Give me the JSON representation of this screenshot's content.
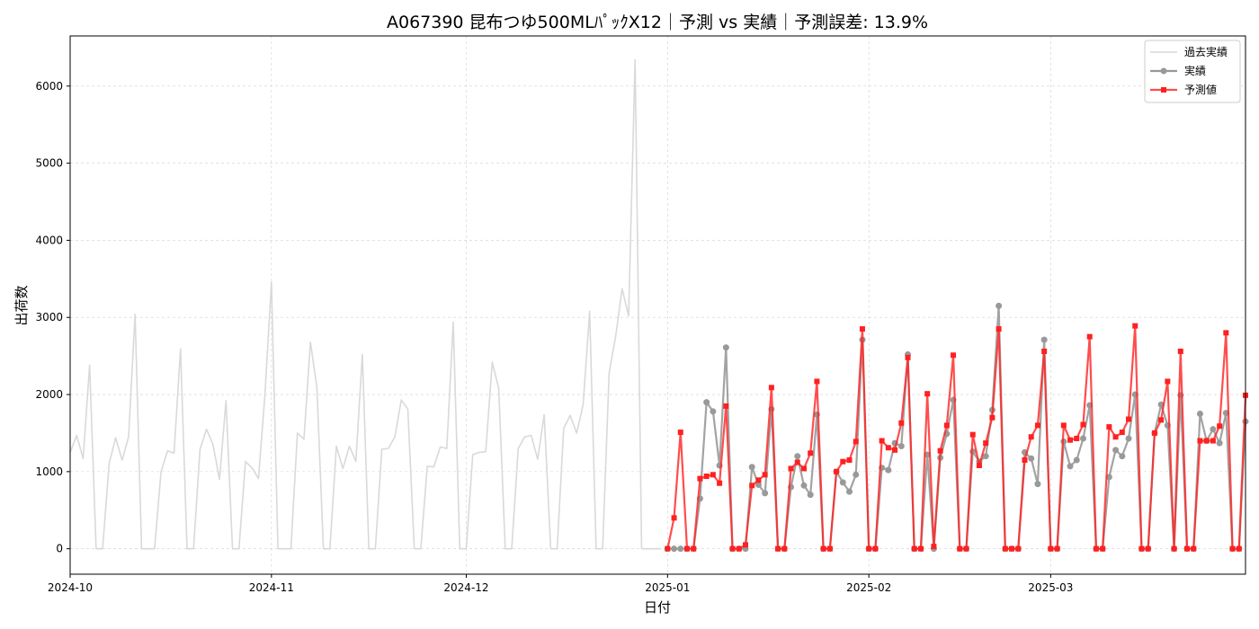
{
  "chart_data": {
    "type": "line",
    "title": "A067390 昆布つゆ500MLﾊﾟｯｸX12｜予測 vs 実績｜予測誤差: 13.9%",
    "xlabel": "日付",
    "ylabel": "出荷数",
    "xlim": [
      "2024-10-01",
      "2025-03-31"
    ],
    "ylim": [
      -330,
      6650
    ],
    "grid": true,
    "legend_position": "top-right",
    "x_ticks": [
      "2024-10",
      "2024-11",
      "2024-12",
      "2025-01",
      "2025-02",
      "2025-03"
    ],
    "y_ticks": [
      0,
      1000,
      2000,
      3000,
      4000,
      5000,
      6000
    ],
    "series": [
      {
        "name": "過去実績",
        "color": "#d9d9d9",
        "marker": "none",
        "points": [
          [
            "2024-10-01",
            1250
          ],
          [
            "2024-10-02",
            1470
          ],
          [
            "2024-10-03",
            1170
          ],
          [
            "2024-10-04",
            2380
          ],
          [
            "2024-10-05",
            0
          ],
          [
            "2024-10-06",
            0
          ],
          [
            "2024-10-07",
            1100
          ],
          [
            "2024-10-08",
            1440
          ],
          [
            "2024-10-09",
            1150
          ],
          [
            "2024-10-10",
            1450
          ],
          [
            "2024-10-11",
            3040
          ],
          [
            "2024-10-12",
            0
          ],
          [
            "2024-10-13",
            0
          ],
          [
            "2024-10-14",
            0
          ],
          [
            "2024-10-15",
            1000
          ],
          [
            "2024-10-16",
            1270
          ],
          [
            "2024-10-17",
            1240
          ],
          [
            "2024-10-18",
            2590
          ],
          [
            "2024-10-19",
            0
          ],
          [
            "2024-10-20",
            0
          ],
          [
            "2024-10-21",
            1290
          ],
          [
            "2024-10-22",
            1550
          ],
          [
            "2024-10-23",
            1350
          ],
          [
            "2024-10-24",
            900
          ],
          [
            "2024-10-25",
            1920
          ],
          [
            "2024-10-26",
            0
          ],
          [
            "2024-10-27",
            0
          ],
          [
            "2024-10-28",
            1130
          ],
          [
            "2024-10-29",
            1050
          ],
          [
            "2024-10-30",
            910
          ],
          [
            "2024-10-31",
            2000
          ],
          [
            "2024-11-01",
            3460
          ],
          [
            "2024-11-02",
            0
          ],
          [
            "2024-11-03",
            0
          ],
          [
            "2024-11-04",
            0
          ],
          [
            "2024-11-05",
            1500
          ],
          [
            "2024-11-06",
            1420
          ],
          [
            "2024-11-07",
            2680
          ],
          [
            "2024-11-08",
            2090
          ],
          [
            "2024-11-09",
            0
          ],
          [
            "2024-11-10",
            0
          ],
          [
            "2024-11-11",
            1330
          ],
          [
            "2024-11-12",
            1040
          ],
          [
            "2024-11-13",
            1330
          ],
          [
            "2024-11-14",
            1130
          ],
          [
            "2024-11-15",
            2520
          ],
          [
            "2024-11-16",
            0
          ],
          [
            "2024-11-17",
            0
          ],
          [
            "2024-11-18",
            1290
          ],
          [
            "2024-11-19",
            1300
          ],
          [
            "2024-11-20",
            1450
          ],
          [
            "2024-11-21",
            1930
          ],
          [
            "2024-11-22",
            1810
          ],
          [
            "2024-11-23",
            0
          ],
          [
            "2024-11-24",
            0
          ],
          [
            "2024-11-25",
            1070
          ],
          [
            "2024-11-26",
            1060
          ],
          [
            "2024-11-27",
            1320
          ],
          [
            "2024-11-28",
            1300
          ],
          [
            "2024-11-29",
            2940
          ],
          [
            "2024-11-30",
            0
          ],
          [
            "2024-12-01",
            0
          ],
          [
            "2024-12-02",
            1220
          ],
          [
            "2024-12-03",
            1250
          ],
          [
            "2024-12-04",
            1260
          ],
          [
            "2024-12-05",
            2420
          ],
          [
            "2024-12-06",
            2080
          ],
          [
            "2024-12-07",
            0
          ],
          [
            "2024-12-08",
            0
          ],
          [
            "2024-12-09",
            1300
          ],
          [
            "2024-12-10",
            1450
          ],
          [
            "2024-12-11",
            1470
          ],
          [
            "2024-12-12",
            1160
          ],
          [
            "2024-12-13",
            1740
          ],
          [
            "2024-12-14",
            0
          ],
          [
            "2024-12-15",
            0
          ],
          [
            "2024-12-16",
            1560
          ],
          [
            "2024-12-17",
            1730
          ],
          [
            "2024-12-18",
            1500
          ],
          [
            "2024-12-19",
            1870
          ],
          [
            "2024-12-20",
            3080
          ],
          [
            "2024-12-21",
            0
          ],
          [
            "2024-12-22",
            0
          ],
          [
            "2024-12-23",
            2280
          ],
          [
            "2024-12-24",
            2750
          ],
          [
            "2024-12-25",
            3370
          ],
          [
            "2024-12-26",
            3020
          ],
          [
            "2024-12-27",
            6340
          ],
          [
            "2024-12-28",
            0
          ],
          [
            "2024-12-29",
            0
          ],
          [
            "2024-12-30",
            0
          ],
          [
            "2024-12-31",
            0
          ]
        ]
      },
      {
        "name": "実績",
        "color": "#999999",
        "marker": "circle",
        "points": [
          [
            "2025-01-01",
            0
          ],
          [
            "2025-01-02",
            0
          ],
          [
            "2025-01-03",
            0
          ],
          [
            "2025-01-04",
            0
          ],
          [
            "2025-01-05",
            0
          ],
          [
            "2025-01-06",
            650
          ],
          [
            "2025-01-07",
            1900
          ],
          [
            "2025-01-08",
            1780
          ],
          [
            "2025-01-09",
            1080
          ],
          [
            "2025-01-10",
            2610
          ],
          [
            "2025-01-11",
            0
          ],
          [
            "2025-01-12",
            0
          ],
          [
            "2025-01-13",
            0
          ],
          [
            "2025-01-14",
            1060
          ],
          [
            "2025-01-15",
            830
          ],
          [
            "2025-01-16",
            720
          ],
          [
            "2025-01-17",
            1810
          ],
          [
            "2025-01-18",
            0
          ],
          [
            "2025-01-19",
            0
          ],
          [
            "2025-01-20",
            800
          ],
          [
            "2025-01-21",
            1200
          ],
          [
            "2025-01-22",
            820
          ],
          [
            "2025-01-23",
            700
          ],
          [
            "2025-01-24",
            1740
          ],
          [
            "2025-01-25",
            0
          ],
          [
            "2025-01-26",
            0
          ],
          [
            "2025-01-27",
            1000
          ],
          [
            "2025-01-28",
            860
          ],
          [
            "2025-01-29",
            740
          ],
          [
            "2025-01-30",
            960
          ],
          [
            "2025-01-31",
            2710
          ],
          [
            "2025-02-01",
            0
          ],
          [
            "2025-02-02",
            0
          ],
          [
            "2025-02-03",
            1050
          ],
          [
            "2025-02-04",
            1020
          ],
          [
            "2025-02-05",
            1370
          ],
          [
            "2025-02-06",
            1330
          ],
          [
            "2025-02-07",
            2520
          ],
          [
            "2025-02-08",
            0
          ],
          [
            "2025-02-09",
            0
          ],
          [
            "2025-02-10",
            1220
          ],
          [
            "2025-02-11",
            0
          ],
          [
            "2025-02-12",
            1180
          ],
          [
            "2025-02-13",
            1490
          ],
          [
            "2025-02-14",
            1930
          ],
          [
            "2025-02-15",
            0
          ],
          [
            "2025-02-16",
            0
          ],
          [
            "2025-02-17",
            1260
          ],
          [
            "2025-02-18",
            1130
          ],
          [
            "2025-02-19",
            1200
          ],
          [
            "2025-02-20",
            1800
          ],
          [
            "2025-02-21",
            3150
          ],
          [
            "2025-02-22",
            0
          ],
          [
            "2025-02-23",
            0
          ],
          [
            "2025-02-24",
            0
          ],
          [
            "2025-02-25",
            1250
          ],
          [
            "2025-02-26",
            1170
          ],
          [
            "2025-02-27",
            840
          ],
          [
            "2025-02-28",
            2710
          ],
          [
            "2025-03-01",
            0
          ],
          [
            "2025-03-02",
            0
          ],
          [
            "2025-03-03",
            1390
          ],
          [
            "2025-03-04",
            1070
          ],
          [
            "2025-03-05",
            1150
          ],
          [
            "2025-03-06",
            1430
          ],
          [
            "2025-03-07",
            1860
          ],
          [
            "2025-03-08",
            0
          ],
          [
            "2025-03-09",
            0
          ],
          [
            "2025-03-10",
            930
          ],
          [
            "2025-03-11",
            1280
          ],
          [
            "2025-03-12",
            1200
          ],
          [
            "2025-03-13",
            1430
          ],
          [
            "2025-03-14",
            2000
          ],
          [
            "2025-03-15",
            0
          ],
          [
            "2025-03-16",
            0
          ],
          [
            "2025-03-17",
            1500
          ],
          [
            "2025-03-18",
            1870
          ],
          [
            "2025-03-19",
            1600
          ],
          [
            "2025-03-20",
            0
          ],
          [
            "2025-03-21",
            1990
          ],
          [
            "2025-03-22",
            0
          ],
          [
            "2025-03-23",
            0
          ],
          [
            "2025-03-24",
            1750
          ],
          [
            "2025-03-25",
            1400
          ],
          [
            "2025-03-26",
            1550
          ],
          [
            "2025-03-27",
            1370
          ],
          [
            "2025-03-28",
            1760
          ],
          [
            "2025-03-29",
            0
          ],
          [
            "2025-03-30",
            0
          ],
          [
            "2025-03-31",
            1650
          ]
        ]
      },
      {
        "name": "予測値",
        "color": "#ff2020",
        "marker": "square",
        "points": [
          [
            "2025-01-01",
            0
          ],
          [
            "2025-01-02",
            400
          ],
          [
            "2025-01-03",
            1510
          ],
          [
            "2025-01-04",
            0
          ],
          [
            "2025-01-05",
            0
          ],
          [
            "2025-01-06",
            910
          ],
          [
            "2025-01-07",
            940
          ],
          [
            "2025-01-08",
            960
          ],
          [
            "2025-01-09",
            850
          ],
          [
            "2025-01-10",
            1850
          ],
          [
            "2025-01-11",
            0
          ],
          [
            "2025-01-12",
            0
          ],
          [
            "2025-01-13",
            50
          ],
          [
            "2025-01-14",
            820
          ],
          [
            "2025-01-15",
            890
          ],
          [
            "2025-01-16",
            960
          ],
          [
            "2025-01-17",
            2090
          ],
          [
            "2025-01-18",
            0
          ],
          [
            "2025-01-19",
            0
          ],
          [
            "2025-01-20",
            1040
          ],
          [
            "2025-01-21",
            1120
          ],
          [
            "2025-01-22",
            1040
          ],
          [
            "2025-01-23",
            1240
          ],
          [
            "2025-01-24",
            2170
          ],
          [
            "2025-01-25",
            0
          ],
          [
            "2025-01-26",
            0
          ],
          [
            "2025-01-27",
            1000
          ],
          [
            "2025-01-28",
            1130
          ],
          [
            "2025-01-29",
            1150
          ],
          [
            "2025-01-30",
            1390
          ],
          [
            "2025-01-31",
            2850
          ],
          [
            "2025-02-01",
            0
          ],
          [
            "2025-02-02",
            0
          ],
          [
            "2025-02-03",
            1400
          ],
          [
            "2025-02-04",
            1310
          ],
          [
            "2025-02-05",
            1280
          ],
          [
            "2025-02-06",
            1630
          ],
          [
            "2025-02-07",
            2480
          ],
          [
            "2025-02-08",
            0
          ],
          [
            "2025-02-09",
            0
          ],
          [
            "2025-02-10",
            2010
          ],
          [
            "2025-02-11",
            30
          ],
          [
            "2025-02-12",
            1270
          ],
          [
            "2025-02-13",
            1600
          ],
          [
            "2025-02-14",
            2510
          ],
          [
            "2025-02-15",
            0
          ],
          [
            "2025-02-16",
            0
          ],
          [
            "2025-02-17",
            1480
          ],
          [
            "2025-02-18",
            1080
          ],
          [
            "2025-02-19",
            1370
          ],
          [
            "2025-02-20",
            1700
          ],
          [
            "2025-02-21",
            2850
          ],
          [
            "2025-02-22",
            0
          ],
          [
            "2025-02-23",
            0
          ],
          [
            "2025-02-24",
            0
          ],
          [
            "2025-02-25",
            1150
          ],
          [
            "2025-02-26",
            1450
          ],
          [
            "2025-02-27",
            1600
          ],
          [
            "2025-02-28",
            2560
          ],
          [
            "2025-03-01",
            0
          ],
          [
            "2025-03-02",
            0
          ],
          [
            "2025-03-03",
            1600
          ],
          [
            "2025-03-04",
            1410
          ],
          [
            "2025-03-05",
            1430
          ],
          [
            "2025-03-06",
            1610
          ],
          [
            "2025-03-07",
            2750
          ],
          [
            "2025-03-08",
            0
          ],
          [
            "2025-03-09",
            0
          ],
          [
            "2025-03-10",
            1580
          ],
          [
            "2025-03-11",
            1450
          ],
          [
            "2025-03-12",
            1510
          ],
          [
            "2025-03-13",
            1680
          ],
          [
            "2025-03-14",
            2890
          ],
          [
            "2025-03-15",
            0
          ],
          [
            "2025-03-16",
            0
          ],
          [
            "2025-03-17",
            1500
          ],
          [
            "2025-03-18",
            1670
          ],
          [
            "2025-03-19",
            2170
          ],
          [
            "2025-03-20",
            0
          ],
          [
            "2025-03-21",
            2560
          ],
          [
            "2025-03-22",
            0
          ],
          [
            "2025-03-23",
            0
          ],
          [
            "2025-03-24",
            1400
          ],
          [
            "2025-03-25",
            1400
          ],
          [
            "2025-03-26",
            1400
          ],
          [
            "2025-03-27",
            1590
          ],
          [
            "2025-03-28",
            2800
          ],
          [
            "2025-03-29",
            0
          ],
          [
            "2025-03-30",
            0
          ],
          [
            "2025-03-31",
            1990
          ]
        ]
      }
    ]
  }
}
